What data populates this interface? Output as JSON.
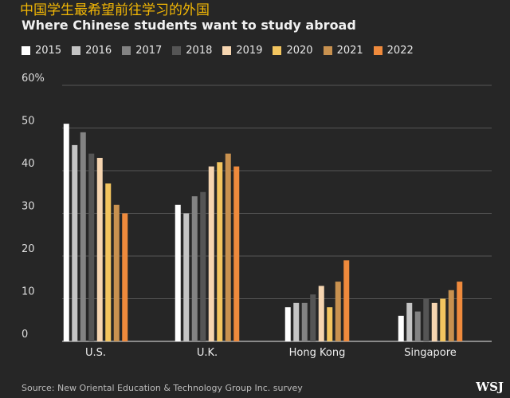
{
  "chart_data": {
    "type": "bar",
    "subtitle_zh": "中国学生最希望前往学习的外国",
    "title": "Where Chinese students want to study abroad",
    "categories": [
      "U.S.",
      "U.K.",
      "Hong Kong",
      "Singapore"
    ],
    "series": [
      {
        "name": "2015",
        "color": "#ffffff",
        "values": [
          51,
          32,
          8,
          6
        ]
      },
      {
        "name": "2016",
        "color": "#c4c4c4",
        "values": [
          46,
          30,
          9,
          9
        ]
      },
      {
        "name": "2017",
        "color": "#838383",
        "values": [
          49,
          34,
          9,
          7
        ]
      },
      {
        "name": "2018",
        "color": "#555555",
        "values": [
          44,
          35,
          11,
          10
        ]
      },
      {
        "name": "2019",
        "color": "#f6d5b0",
        "values": [
          43,
          41,
          13,
          9
        ]
      },
      {
        "name": "2020",
        "color": "#f3c55f",
        "values": [
          37,
          42,
          8,
          10
        ]
      },
      {
        "name": "2021",
        "color": "#c8914f",
        "values": [
          32,
          44,
          14,
          12
        ]
      },
      {
        "name": "2022",
        "color": "#ef8a3c",
        "values": [
          30,
          41,
          19,
          14
        ]
      }
    ],
    "yticks": [
      "0",
      "10",
      "20",
      "30",
      "40",
      "50",
      "60%"
    ],
    "ylim": [
      0,
      60
    ],
    "grid": true,
    "legend_placement": "top-left"
  },
  "source": "Source: New Oriental Education & Technology Group Inc. survey",
  "logo": "WSJ"
}
